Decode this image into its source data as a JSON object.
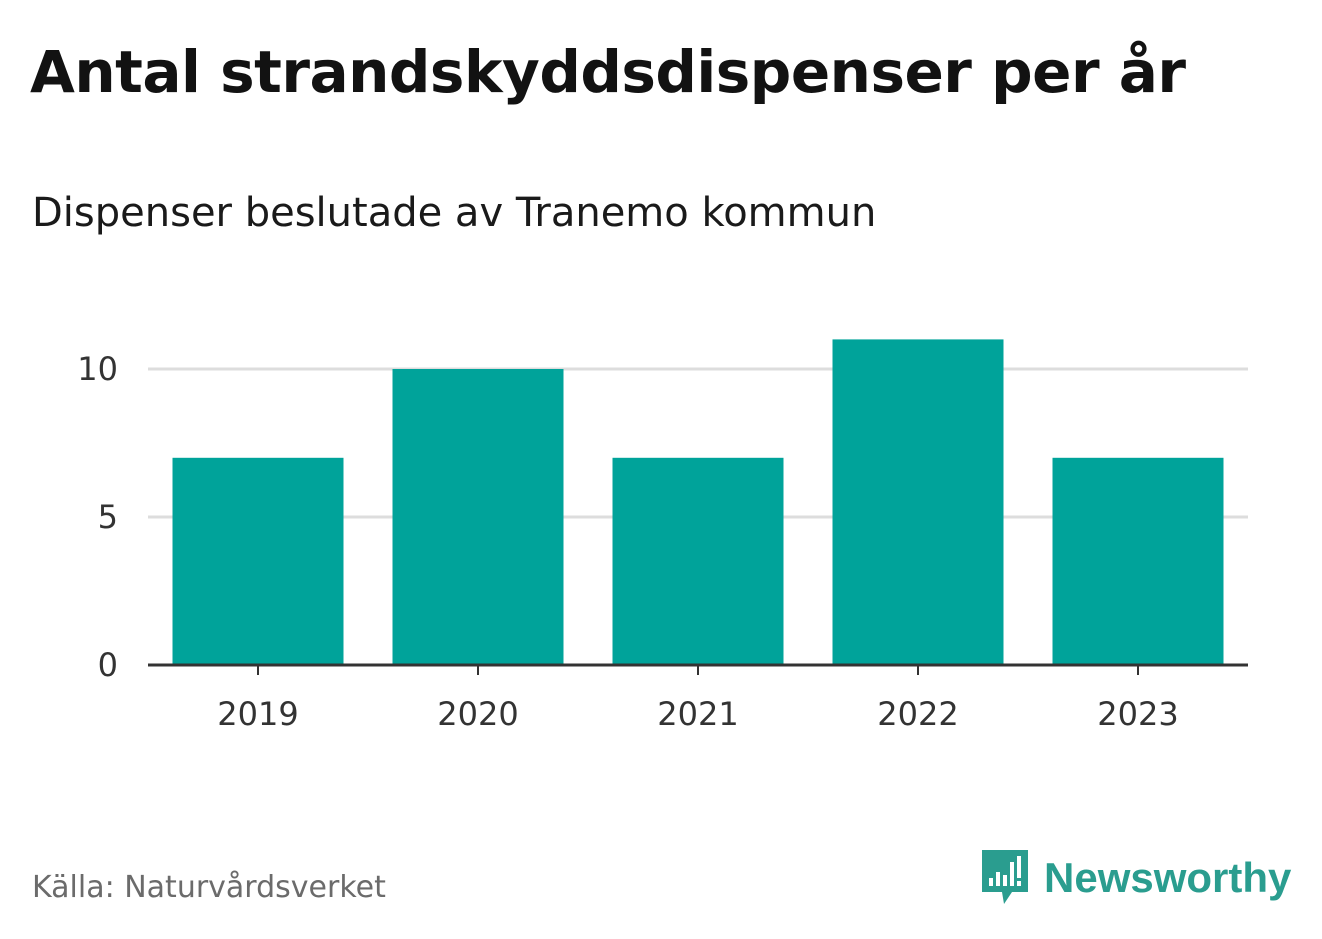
{
  "title": "Antal strandskyddsdispenser per år",
  "subtitle": "Dispenser beslutade av Tranemo kommun",
  "source": "Källa: Naturvårdsverket",
  "brand": {
    "name": "Newsworthy",
    "icon": "newsworthy-logo-icon",
    "color": "#2a9d8f"
  },
  "colors": {
    "bar": "#00a39a",
    "grid": "#dddddd",
    "axis": "#333333"
  },
  "chart_data": {
    "type": "bar",
    "title": "Antal strandskyddsdispenser per år",
    "subtitle": "Dispenser beslutade av Tranemo kommun",
    "xlabel": "",
    "ylabel": "",
    "categories": [
      "2019",
      "2020",
      "2021",
      "2022",
      "2023"
    ],
    "values": [
      7,
      10,
      7,
      11,
      7
    ],
    "ylim": [
      0,
      11
    ],
    "yticks": [
      0,
      5,
      10
    ],
    "grid": true,
    "legend": "none"
  }
}
